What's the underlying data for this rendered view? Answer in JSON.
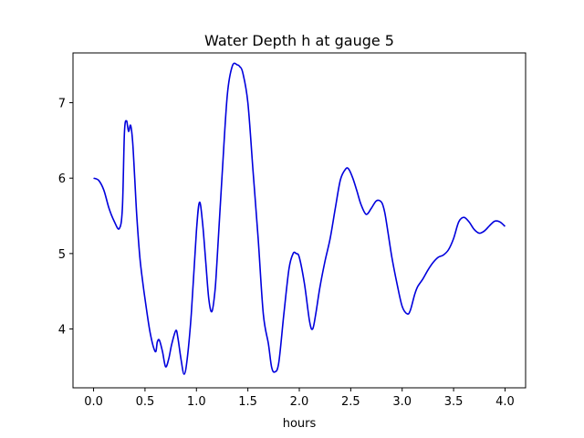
{
  "chart_data": {
    "type": "line",
    "title": "Water Depth h at gauge 5",
    "xlabel": "hours",
    "ylabel": "",
    "xlim": [
      -0.2,
      4.2
    ],
    "ylim": [
      3.22,
      7.66
    ],
    "xticks": [
      0.0,
      0.5,
      1.0,
      1.5,
      2.0,
      2.5,
      3.0,
      3.5,
      4.0
    ],
    "xtick_labels": [
      "0.0",
      "0.5",
      "1.0",
      "1.5",
      "2.0",
      "2.5",
      "3.0",
      "3.5",
      "4.0"
    ],
    "yticks": [
      4,
      5,
      6,
      7
    ],
    "ytick_labels": [
      "4",
      "5",
      "6",
      "7"
    ],
    "grid": false,
    "series": [
      {
        "color": "#0000dd",
        "x": [
          0.0,
          0.05,
          0.1,
          0.15,
          0.2,
          0.25,
          0.28,
          0.3,
          0.32,
          0.34,
          0.36,
          0.38,
          0.4,
          0.42,
          0.45,
          0.48,
          0.5,
          0.55,
          0.6,
          0.62,
          0.64,
          0.67,
          0.7,
          0.73,
          0.76,
          0.8,
          0.82,
          0.85,
          0.88,
          0.91,
          0.95,
          1.0,
          1.03,
          1.06,
          1.09,
          1.12,
          1.15,
          1.18,
          1.2,
          1.25,
          1.3,
          1.35,
          1.4,
          1.42,
          1.45,
          1.5,
          1.55,
          1.6,
          1.65,
          1.7,
          1.73,
          1.76,
          1.8,
          1.85,
          1.9,
          1.94,
          1.97,
          2.0,
          2.05,
          2.1,
          2.13,
          2.16,
          2.2,
          2.25,
          2.3,
          2.35,
          2.4,
          2.45,
          2.48,
          2.52,
          2.56,
          2.6,
          2.65,
          2.7,
          2.75,
          2.8,
          2.83,
          2.86,
          2.9,
          2.95,
          3.0,
          3.05,
          3.08,
          3.12,
          3.15,
          3.2,
          3.25,
          3.3,
          3.35,
          3.4,
          3.45,
          3.5,
          3.55,
          3.6,
          3.65,
          3.7,
          3.75,
          3.8,
          3.85,
          3.9,
          3.95,
          4.0
        ],
        "y": [
          6.0,
          5.97,
          5.84,
          5.6,
          5.43,
          5.33,
          5.6,
          6.6,
          6.76,
          6.62,
          6.7,
          6.48,
          6.0,
          5.5,
          4.95,
          4.6,
          4.4,
          3.95,
          3.7,
          3.83,
          3.85,
          3.7,
          3.5,
          3.6,
          3.8,
          3.98,
          3.88,
          3.6,
          3.4,
          3.6,
          4.2,
          5.3,
          5.68,
          5.4,
          4.9,
          4.4,
          4.23,
          4.5,
          4.9,
          6.05,
          7.1,
          7.49,
          7.5,
          7.48,
          7.4,
          7.0,
          6.1,
          5.2,
          4.2,
          3.8,
          3.5,
          3.43,
          3.55,
          4.2,
          4.8,
          5.0,
          5.0,
          4.95,
          4.6,
          4.1,
          4.0,
          4.2,
          4.55,
          4.9,
          5.2,
          5.6,
          5.98,
          6.12,
          6.12,
          6.0,
          5.83,
          5.65,
          5.52,
          5.6,
          5.7,
          5.68,
          5.55,
          5.3,
          4.95,
          4.6,
          4.3,
          4.2,
          4.25,
          4.45,
          4.56,
          4.66,
          4.78,
          4.88,
          4.95,
          4.98,
          5.05,
          5.2,
          5.42,
          5.48,
          5.42,
          5.32,
          5.27,
          5.3,
          5.37,
          5.43,
          5.42,
          5.36
        ]
      }
    ]
  }
}
